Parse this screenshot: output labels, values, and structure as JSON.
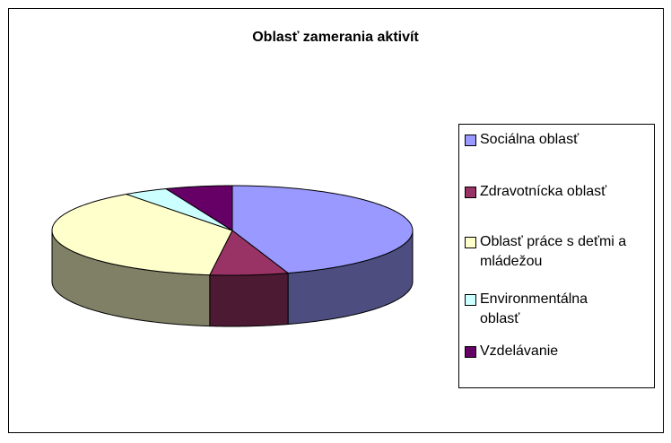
{
  "chart_data": {
    "type": "pie3d",
    "title": "Oblasť zamerania aktivít",
    "categories": [
      "Sociálna oblasť",
      "Zdravotnícka oblasť",
      "Oblasť práce s deťmi a mládežou",
      "Environmentálna oblasť",
      "Vzdelávanie"
    ],
    "values": [
      45,
      7,
      38,
      4,
      6
    ],
    "colors": [
      "#9999ff",
      "#993366",
      "#ffffcc",
      "#ccffff",
      "#660066"
    ],
    "legend": "right"
  }
}
